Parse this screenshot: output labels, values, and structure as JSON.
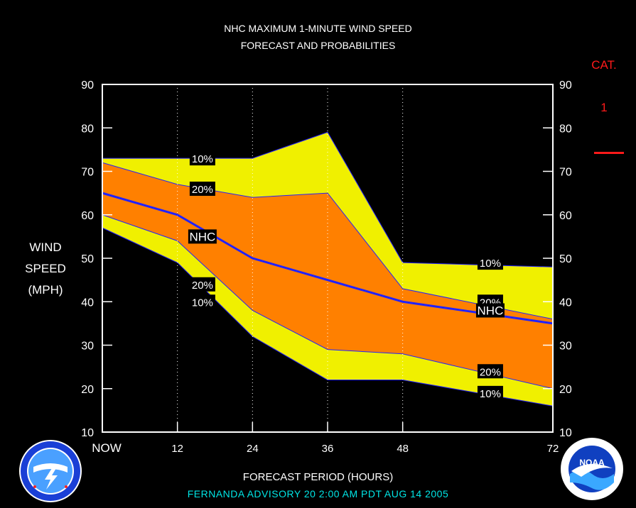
{
  "header": {
    "title_line1": "NHC MAXIMUM 1-MINUTE WIND SPEED",
    "title_line2": "FORECAST AND PROBABILITIES"
  },
  "axes": {
    "ylabel_line1": "WIND",
    "ylabel_line2": "SPEED",
    "ylabel_line3": "(MPH)",
    "xlabel": "FORECAST PERIOD (HOURS)"
  },
  "category": {
    "label": "CAT.",
    "value": "1",
    "color": "#ff1a1a"
  },
  "advisory": "FERNANDA   ADVISORY  20  2:00  AM  PDT  AUG 14 2005",
  "colors": {
    "outer_band": "#f0f000",
    "inner_band": "#ff8000",
    "nhc_line": "#2222ff",
    "background": "#000000",
    "plot_frame": "#ffffff",
    "advisory_text": "#00e5e5"
  },
  "chart_data": {
    "type": "area",
    "x": [
      0,
      12,
      24,
      36,
      48,
      72
    ],
    "x_tick_labels": [
      "NOW",
      "12",
      "24",
      "36",
      "48",
      "72"
    ],
    "xlim": [
      0,
      72
    ],
    "ylim": [
      10,
      90
    ],
    "y_ticks": [
      10,
      20,
      30,
      40,
      50,
      60,
      70,
      80,
      90
    ],
    "grid": "vertical dotted",
    "series": [
      {
        "role": "upper_10",
        "values": [
          73,
          73,
          73,
          79,
          49,
          48
        ]
      },
      {
        "role": "upper_20",
        "values": [
          72,
          67,
          64,
          65,
          43,
          36
        ]
      },
      {
        "role": "nhc",
        "values": [
          65,
          60,
          50,
          45,
          40,
          35
        ]
      },
      {
        "role": "lower_20",
        "values": [
          60,
          54,
          38,
          29,
          28,
          20
        ]
      },
      {
        "role": "lower_10",
        "values": [
          57,
          49,
          32,
          22,
          22,
          16
        ]
      }
    ],
    "annotations": [
      {
        "text": "10%",
        "x": 16,
        "y": 73
      },
      {
        "text": "20%",
        "x": 16,
        "y": 66
      },
      {
        "text": "NHC",
        "x": 16,
        "y": 55
      },
      {
        "text": "20%",
        "x": 16,
        "y": 44
      },
      {
        "text": "10%",
        "x": 16,
        "y": 40
      },
      {
        "text": "10%",
        "x": 62,
        "y": 49
      },
      {
        "text": "20%",
        "x": 62,
        "y": 40
      },
      {
        "text": "NHC",
        "x": 62,
        "y": 38
      },
      {
        "text": "20%",
        "x": 62,
        "y": 24
      },
      {
        "text": "10%",
        "x": 62,
        "y": 19
      }
    ]
  },
  "logos": {
    "nws": "National Weather Service",
    "noaa": "NOAA"
  }
}
